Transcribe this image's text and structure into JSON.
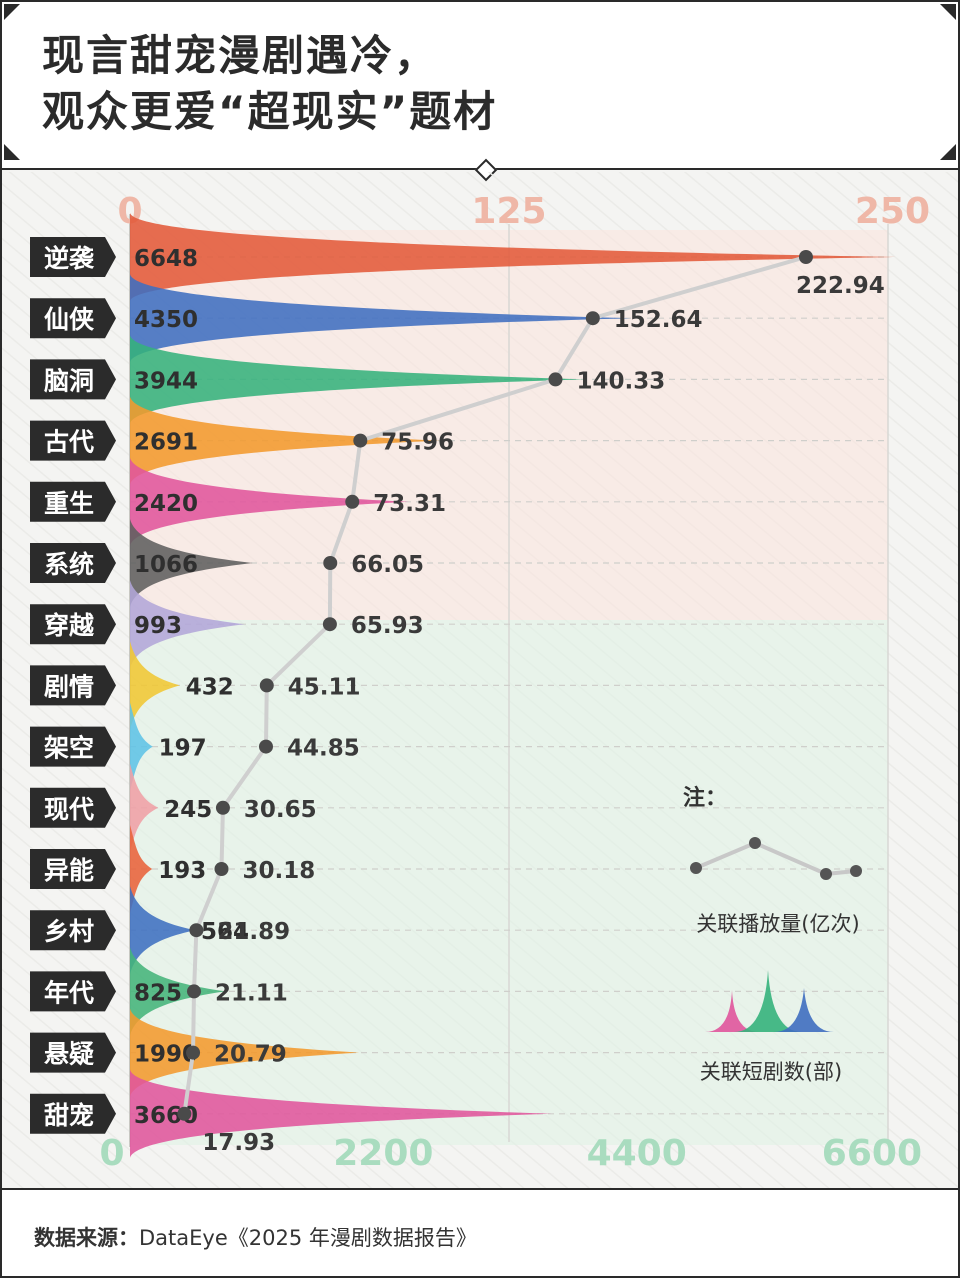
{
  "title": {
    "line1": "现言甜宠漫剧遇冷，",
    "line2": "观众更爱“超现实”题材"
  },
  "chart_data": {
    "type": "bar",
    "categories": [
      "逆袭",
      "仙侠",
      "脑洞",
      "古代",
      "重生",
      "系统",
      "穿越",
      "剧情",
      "架空",
      "现代",
      "异能",
      "乡村",
      "年代",
      "悬疑",
      "甜宠"
    ],
    "series": [
      {
        "name": "关联短剧数(部)",
        "values": [
          6648,
          4350,
          3944,
          2691,
          2420,
          1066,
          993,
          432,
          197,
          245,
          193,
          564,
          825,
          1990,
          3660
        ]
      },
      {
        "name": "关联播放量(亿次)",
        "values": [
          222.94,
          152.64,
          140.33,
          75.96,
          73.31,
          66.05,
          65.93,
          45.11,
          44.85,
          30.65,
          30.18,
          21.89,
          21.11,
          20.79,
          17.93
        ]
      }
    ],
    "value_labels": {
      "count": [
        "6648",
        "4350",
        "3944",
        "2691",
        "2420",
        "1066",
        "993",
        "432",
        "197",
        "245",
        "193",
        "564",
        "825",
        "1990",
        "3660"
      ],
      "views": [
        "222.94",
        "152.64",
        "140.33",
        "75.96",
        "73.31",
        "66.05",
        "65.93",
        "45.11",
        "44.85",
        "30.65",
        "30.18",
        "21.89",
        "21.11",
        "20.79",
        "17.93"
      ]
    },
    "colors": [
      "#e35a3a",
      "#3f6ec0",
      "#35b27c",
      "#f39a2e",
      "#e0559c",
      "#5e5e5e",
      "#b2a6d8",
      "#f0c733",
      "#5fc3e6",
      "#ef9fa5",
      "#e8623a",
      "#3e6fc0",
      "#44b47a",
      "#f39a2e",
      "#e0559c"
    ],
    "top_axis": {
      "ticks": [
        "0",
        "125",
        "250"
      ],
      "range": [
        0,
        250
      ]
    },
    "bottom_axis": {
      "ticks": [
        "0",
        "2200",
        "4400",
        "6600"
      ],
      "range": [
        0,
        6600
      ]
    }
  },
  "legend": {
    "heading": "注：",
    "line_label": "关联播放量(亿次)",
    "area_label": "关联短剧数(部)"
  },
  "source": {
    "label": "数据来源：",
    "text": "DataEye《2025 年漫剧数据报告》"
  }
}
